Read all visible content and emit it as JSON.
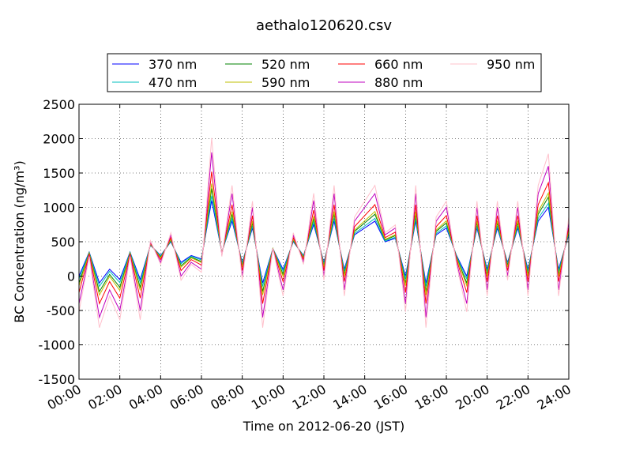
{
  "chart_data": {
    "type": "line",
    "title": "aethalo120620.csv",
    "x_label": "Time on 2012-06-20 (JST)",
    "y_label": "BC Concentration (ng/m³)",
    "x": [
      0,
      0.5,
      1,
      1.5,
      2,
      2.5,
      3,
      3.5,
      4,
      4.5,
      5,
      5.5,
      6,
      6.5,
      7,
      7.5,
      8,
      8.5,
      9,
      9.5,
      10,
      10.5,
      11,
      11.5,
      12,
      12.5,
      13,
      13.5,
      14,
      14.5,
      15,
      15.5,
      16,
      16.5,
      17,
      17.5,
      18,
      18.5,
      19,
      19.5,
      20,
      20.5,
      21,
      21.5,
      22,
      22.5,
      23,
      23.5,
      24
    ],
    "series": [
      {
        "name": "370 nm",
        "color": "#0000ff",
        "values": [
          0,
          350,
          -100,
          100,
          -50,
          350,
          -50,
          450,
          300,
          500,
          200,
          300,
          250,
          1100,
          350,
          800,
          200,
          700,
          -100,
          400,
          100,
          500,
          300,
          750,
          200,
          800,
          100,
          600,
          700,
          800,
          500,
          550,
          0,
          800,
          -100,
          600,
          700,
          300,
          0,
          700,
          100,
          700,
          200,
          700,
          100,
          800,
          1000,
          100,
          600
        ]
      },
      {
        "name": "470 nm",
        "color": "#00bfbf",
        "values": [
          -40,
          345,
          -150,
          70,
          -95,
          345,
          -95,
          455,
          290,
          510,
          180,
          290,
          235,
          1170,
          345,
          840,
          180,
          730,
          -150,
          400,
          70,
          510,
          290,
          785,
          180,
          840,
          70,
          620,
          730,
          840,
          510,
          565,
          -40,
          840,
          -150,
          620,
          730,
          290,
          -40,
          730,
          70,
          730,
          180,
          730,
          70,
          840,
          1060,
          70,
          620
        ]
      },
      {
        "name": "520 nm",
        "color": "#008000",
        "values": [
          -100,
          338,
          -225,
          25,
          -162,
          338,
          -162,
          462,
          275,
          525,
          150,
          275,
          212,
          1275,
          338,
          900,
          150,
          775,
          -225,
          400,
          25,
          525,
          275,
          838,
          150,
          900,
          25,
          650,
          775,
          900,
          525,
          588,
          -100,
          900,
          -225,
          650,
          775,
          275,
          -100,
          775,
          25,
          775,
          150,
          775,
          25,
          900,
          1150,
          25,
          650
        ]
      },
      {
        "name": "590 nm",
        "color": "#bfbf00",
        "values": [
          -140,
          332,
          -275,
          -5,
          -208,
          332,
          -208,
          468,
          265,
          535,
          130,
          265,
          198,
          1345,
          332,
          940,
          130,
          805,
          -275,
          400,
          -5,
          535,
          265,
          872,
          130,
          940,
          -5,
          670,
          805,
          940,
          535,
          602,
          -140,
          940,
          -275,
          670,
          805,
          265,
          -140,
          805,
          -5,
          805,
          130,
          805,
          -5,
          940,
          1210,
          -5,
          670
        ]
      },
      {
        "name": "660 nm",
        "color": "#ff0000",
        "values": [
          -240,
          320,
          -400,
          -80,
          -320,
          320,
          -320,
          480,
          240,
          560,
          80,
          240,
          160,
          1520,
          320,
          1040,
          80,
          880,
          -400,
          400,
          -80,
          560,
          240,
          960,
          80,
          1040,
          -80,
          720,
          880,
          1040,
          560,
          640,
          -240,
          1040,
          -400,
          720,
          880,
          240,
          -240,
          880,
          -80,
          880,
          80,
          880,
          -80,
          1040,
          1360,
          -80,
          720
        ]
      },
      {
        "name": "880 nm",
        "color": "#bf00bf",
        "values": [
          -400,
          300,
          -600,
          -200,
          -500,
          300,
          -500,
          500,
          200,
          600,
          0,
          200,
          100,
          1800,
          300,
          1200,
          0,
          1000,
          -600,
          400,
          -200,
          600,
          200,
          1100,
          0,
          1200,
          -200,
          800,
          1000,
          1200,
          600,
          700,
          -400,
          1200,
          -600,
          800,
          1000,
          200,
          -400,
          1000,
          -200,
          1000,
          0,
          1000,
          -200,
          1200,
          1600,
          -200,
          800
        ]
      },
      {
        "name": "950 nm",
        "color": "#ffc0cb",
        "values": [
          -520,
          285,
          -750,
          -290,
          -635,
          285,
          -635,
          515,
          170,
          630,
          -60,
          170,
          55,
          2010,
          285,
          1320,
          -60,
          1090,
          -750,
          400,
          -290,
          630,
          170,
          1205,
          -60,
          1320,
          -290,
          860,
          1090,
          1320,
          630,
          745,
          -520,
          1320,
          -750,
          860,
          1090,
          170,
          -520,
          1090,
          -290,
          1090,
          -60,
          1090,
          -290,
          1320,
          1780,
          -290,
          860
        ]
      }
    ],
    "xlim": [
      0,
      24
    ],
    "xticks": [
      {
        "value": 0,
        "label": "00:00"
      },
      {
        "value": 2,
        "label": "02:00"
      },
      {
        "value": 4,
        "label": "04:00"
      },
      {
        "value": 6,
        "label": "06:00"
      },
      {
        "value": 8,
        "label": "08:00"
      },
      {
        "value": 10,
        "label": "10:00"
      },
      {
        "value": 12,
        "label": "12:00"
      },
      {
        "value": 14,
        "label": "14:00"
      },
      {
        "value": 16,
        "label": "16:00"
      },
      {
        "value": 18,
        "label": "18:00"
      },
      {
        "value": 20,
        "label": "20:00"
      },
      {
        "value": 22,
        "label": "22:00"
      },
      {
        "value": 24,
        "label": "24:00"
      }
    ],
    "ylim": [
      -1500,
      2500
    ],
    "yticks": [
      -1500,
      -1000,
      -500,
      0,
      500,
      1000,
      1500,
      2000,
      2500
    ],
    "grid": true,
    "legend": "top"
  }
}
